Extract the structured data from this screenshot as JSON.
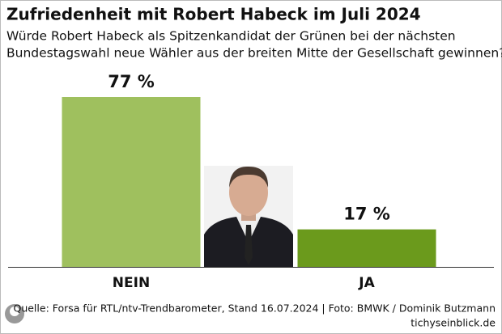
{
  "chart_data": {
    "type": "bar",
    "title": "Zufriedenheit mit Robert Habeck im Juli 2024",
    "subtitle": [
      "Würde Robert Habeck als Spitzenkandidat der Grünen bei der nächsten",
      "Bundestagswahl neue Wähler aus der breiten Mitte der Gesellschaft gewinnen?"
    ],
    "categories": [
      "NEIN",
      "JA"
    ],
    "values": [
      77,
      17
    ],
    "value_labels": [
      "77 %",
      "17 %"
    ],
    "colors": [
      "#9fc05e",
      "#6b9a1c"
    ],
    "source": "Quelle: Forsa für RTL/ntv-Trendbarometer, Stand 16.07.2024 | Foto: BMWK / Dominik Butzmann",
    "publisher": "tichyseinblick.de"
  }
}
